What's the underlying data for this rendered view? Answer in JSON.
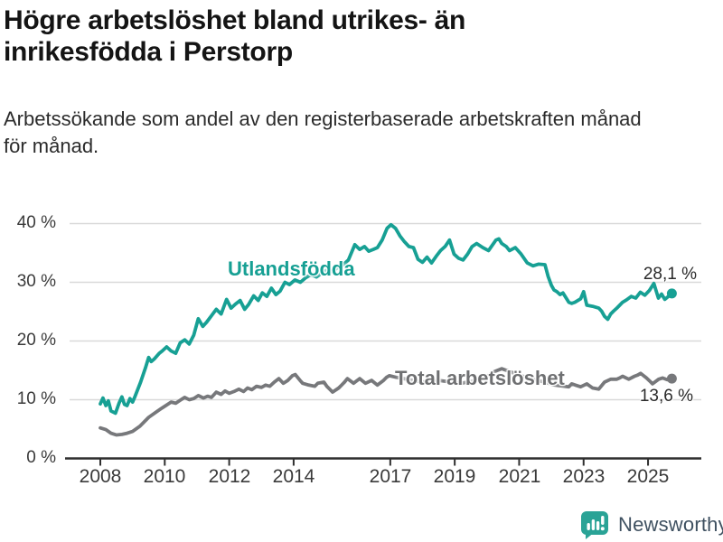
{
  "header": {
    "title_lines": [
      "Högre arbetslöshet bland utrikes- än",
      "inrikesfödda i Perstorp"
    ],
    "subtitle_lines": [
      "Arbetssökande som andel av den registerbaserade arbetskraften månad",
      "för månad."
    ]
  },
  "colors": {
    "accent_teal": "#17a094",
    "series_gray": "#77787b",
    "grid": "#d9d9d9",
    "axis": "#2f2f2f",
    "brand_teal": "#2aa396",
    "brand_text": "#3f5161"
  },
  "footer": {
    "brand": "Newsworthy"
  },
  "chart_data": {
    "type": "line",
    "title": "Högre arbetslöshet bland utrikes- än inrikesfödda i Perstorp",
    "subtitle": "Arbetssökande som andel av den registerbaserade arbetskraften månad för månad.",
    "xlabel": "",
    "ylabel": "",
    "unit": "%",
    "grid": "horizontal",
    "legend_position": "inline-labels",
    "xlim": [
      2007.0,
      2026.3
    ],
    "ylim": [
      0,
      40
    ],
    "xticks": [
      2008,
      2010,
      2012,
      2014,
      2017,
      2019,
      2021,
      2023,
      2025
    ],
    "xtick_labels": [
      "2008",
      "2010",
      "2012",
      "2014",
      "2017",
      "2019",
      "2021",
      "2023",
      "2025"
    ],
    "yticks": [
      0,
      10,
      20,
      30,
      40
    ],
    "ytick_labels": [
      "0 %",
      "10 %",
      "20 %",
      "30 %",
      "40 %"
    ],
    "series": [
      {
        "name": "Utlandsfödda",
        "color": "#17a094",
        "end_label": "28,1 %",
        "last_value": 28.1,
        "points": [
          [
            2008.0,
            9.3
          ],
          [
            2008.08,
            10.3
          ],
          [
            2008.17,
            9.0
          ],
          [
            2008.25,
            9.8
          ],
          [
            2008.33,
            8.1
          ],
          [
            2008.47,
            7.7
          ],
          [
            2008.58,
            9.4
          ],
          [
            2008.67,
            10.5
          ],
          [
            2008.75,
            9.2
          ],
          [
            2008.83,
            9.0
          ],
          [
            2008.92,
            10.2
          ],
          [
            2009.0,
            9.6
          ],
          [
            2009.08,
            10.6
          ],
          [
            2009.25,
            13.0
          ],
          [
            2009.4,
            15.4
          ],
          [
            2009.5,
            17.2
          ],
          [
            2009.58,
            16.5
          ],
          [
            2009.67,
            16.9
          ],
          [
            2009.83,
            17.9
          ],
          [
            2009.92,
            18.3
          ],
          [
            2010.06,
            19.0
          ],
          [
            2010.2,
            18.3
          ],
          [
            2010.34,
            17.9
          ],
          [
            2010.48,
            19.7
          ],
          [
            2010.62,
            20.2
          ],
          [
            2010.76,
            19.5
          ],
          [
            2010.9,
            21.0
          ],
          [
            2011.04,
            23.8
          ],
          [
            2011.18,
            22.5
          ],
          [
            2011.3,
            23.2
          ],
          [
            2011.45,
            24.3
          ],
          [
            2011.6,
            25.4
          ],
          [
            2011.75,
            24.6
          ],
          [
            2011.92,
            27.1
          ],
          [
            2012.06,
            25.6
          ],
          [
            2012.2,
            26.3
          ],
          [
            2012.34,
            26.9
          ],
          [
            2012.48,
            25.4
          ],
          [
            2012.6,
            26.2
          ],
          [
            2012.76,
            27.7
          ],
          [
            2012.9,
            26.9
          ],
          [
            2013.03,
            28.2
          ],
          [
            2013.17,
            27.6
          ],
          [
            2013.31,
            29.0
          ],
          [
            2013.45,
            27.9
          ],
          [
            2013.58,
            28.5
          ],
          [
            2013.73,
            30.0
          ],
          [
            2013.87,
            29.6
          ],
          [
            2014.04,
            30.4
          ],
          [
            2014.21,
            30.0
          ],
          [
            2014.38,
            30.8
          ],
          [
            2014.54,
            31.3
          ],
          [
            2014.71,
            30.9
          ],
          [
            2014.88,
            31.6
          ],
          [
            2015.04,
            32.1
          ],
          [
            2015.21,
            31.8
          ],
          [
            2015.38,
            32.6
          ],
          [
            2015.54,
            33.0
          ],
          [
            2015.7,
            33.8
          ],
          [
            2015.9,
            36.4
          ],
          [
            2016.05,
            35.6
          ],
          [
            2016.2,
            36.1
          ],
          [
            2016.33,
            35.3
          ],
          [
            2016.47,
            35.6
          ],
          [
            2016.6,
            35.9
          ],
          [
            2016.75,
            37.2
          ],
          [
            2016.9,
            39.2
          ],
          [
            2017.02,
            39.8
          ],
          [
            2017.16,
            39.2
          ],
          [
            2017.3,
            37.9
          ],
          [
            2017.44,
            36.9
          ],
          [
            2017.58,
            36.1
          ],
          [
            2017.72,
            35.9
          ],
          [
            2017.86,
            33.9
          ],
          [
            2018.0,
            33.4
          ],
          [
            2018.14,
            34.3
          ],
          [
            2018.28,
            33.3
          ],
          [
            2018.42,
            34.4
          ],
          [
            2018.56,
            35.4
          ],
          [
            2018.7,
            36.1
          ],
          [
            2018.84,
            37.2
          ],
          [
            2018.98,
            34.8
          ],
          [
            2019.12,
            34.1
          ],
          [
            2019.26,
            33.8
          ],
          [
            2019.4,
            34.8
          ],
          [
            2019.54,
            36.1
          ],
          [
            2019.68,
            36.6
          ],
          [
            2019.87,
            35.9
          ],
          [
            2020.05,
            35.4
          ],
          [
            2020.28,
            37.2
          ],
          [
            2020.37,
            37.4
          ],
          [
            2020.46,
            36.6
          ],
          [
            2020.6,
            36.1
          ],
          [
            2020.7,
            35.4
          ],
          [
            2020.88,
            35.9
          ],
          [
            2021.06,
            34.8
          ],
          [
            2021.25,
            33.3
          ],
          [
            2021.43,
            32.8
          ],
          [
            2021.6,
            33.1
          ],
          [
            2021.8,
            33.0
          ],
          [
            2021.9,
            31.0
          ],
          [
            2022.0,
            29.5
          ],
          [
            2022.08,
            28.7
          ],
          [
            2022.17,
            28.4
          ],
          [
            2022.27,
            27.9
          ],
          [
            2022.36,
            28.2
          ],
          [
            2022.45,
            27.4
          ],
          [
            2022.54,
            26.6
          ],
          [
            2022.63,
            26.4
          ],
          [
            2022.73,
            26.6
          ],
          [
            2022.91,
            27.2
          ],
          [
            2023.0,
            28.4
          ],
          [
            2023.1,
            26.1
          ],
          [
            2023.28,
            25.9
          ],
          [
            2023.47,
            25.6
          ],
          [
            2023.56,
            25.1
          ],
          [
            2023.65,
            24.2
          ],
          [
            2023.75,
            23.7
          ],
          [
            2023.84,
            24.6
          ],
          [
            2023.93,
            25.1
          ],
          [
            2024.03,
            25.6
          ],
          [
            2024.12,
            26.1
          ],
          [
            2024.21,
            26.6
          ],
          [
            2024.33,
            27.0
          ],
          [
            2024.48,
            27.6
          ],
          [
            2024.62,
            27.3
          ],
          [
            2024.76,
            28.3
          ],
          [
            2024.9,
            27.8
          ],
          [
            2025.04,
            28.6
          ],
          [
            2025.18,
            29.8
          ],
          [
            2025.32,
            27.3
          ],
          [
            2025.42,
            28.0
          ],
          [
            2025.52,
            27.1
          ],
          [
            2025.74,
            28.1
          ]
        ]
      },
      {
        "name": "Total arbetslöshet",
        "color": "#77787b",
        "end_label": "13,6 %",
        "last_value": 13.6,
        "points": [
          [
            2008.0,
            5.2
          ],
          [
            2008.17,
            4.9
          ],
          [
            2008.33,
            4.3
          ],
          [
            2008.5,
            4.0
          ],
          [
            2008.67,
            4.1
          ],
          [
            2008.83,
            4.3
          ],
          [
            2009.0,
            4.6
          ],
          [
            2009.23,
            5.5
          ],
          [
            2009.5,
            7.0
          ],
          [
            2009.78,
            8.1
          ],
          [
            2009.92,
            8.6
          ],
          [
            2010.06,
            9.1
          ],
          [
            2010.2,
            9.6
          ],
          [
            2010.34,
            9.4
          ],
          [
            2010.48,
            9.9
          ],
          [
            2010.62,
            10.4
          ],
          [
            2010.76,
            10.0
          ],
          [
            2010.9,
            10.2
          ],
          [
            2011.04,
            10.7
          ],
          [
            2011.2,
            10.3
          ],
          [
            2011.33,
            10.6
          ],
          [
            2011.45,
            10.4
          ],
          [
            2011.6,
            11.3
          ],
          [
            2011.75,
            10.9
          ],
          [
            2011.87,
            11.5
          ],
          [
            2012.0,
            11.1
          ],
          [
            2012.15,
            11.4
          ],
          [
            2012.3,
            11.8
          ],
          [
            2012.45,
            11.4
          ],
          [
            2012.57,
            12.0
          ],
          [
            2012.7,
            11.7
          ],
          [
            2012.85,
            12.3
          ],
          [
            2013.0,
            12.1
          ],
          [
            2013.13,
            12.5
          ],
          [
            2013.26,
            12.3
          ],
          [
            2013.4,
            13.0
          ],
          [
            2013.54,
            13.6
          ],
          [
            2013.68,
            12.8
          ],
          [
            2013.82,
            13.3
          ],
          [
            2013.96,
            14.1
          ],
          [
            2014.05,
            14.3
          ],
          [
            2014.2,
            13.3
          ],
          [
            2014.28,
            12.8
          ],
          [
            2014.47,
            12.5
          ],
          [
            2014.66,
            12.3
          ],
          [
            2014.75,
            12.8
          ],
          [
            2014.94,
            13.0
          ],
          [
            2015.03,
            12.3
          ],
          [
            2015.12,
            11.8
          ],
          [
            2015.21,
            11.3
          ],
          [
            2015.4,
            12.0
          ],
          [
            2015.49,
            12.5
          ],
          [
            2015.58,
            13.0
          ],
          [
            2015.67,
            13.6
          ],
          [
            2015.86,
            12.8
          ],
          [
            2016.05,
            13.6
          ],
          [
            2016.23,
            12.8
          ],
          [
            2016.42,
            13.3
          ],
          [
            2016.6,
            12.5
          ],
          [
            2016.79,
            13.3
          ],
          [
            2016.88,
            13.8
          ],
          [
            2016.97,
            14.1
          ],
          [
            2017.2,
            13.8
          ],
          [
            2017.5,
            13.5
          ],
          [
            2017.8,
            13.2
          ],
          [
            2018.1,
            13.0
          ],
          [
            2018.5,
            13.3
          ],
          [
            2018.9,
            13.0
          ],
          [
            2019.2,
            12.8
          ],
          [
            2019.6,
            13.2
          ],
          [
            2019.9,
            13.6
          ],
          [
            2020.2,
            14.7
          ],
          [
            2020.46,
            15.3
          ],
          [
            2020.7,
            14.8
          ],
          [
            2021.0,
            14.2
          ],
          [
            2021.4,
            13.5
          ],
          [
            2021.8,
            13.0
          ],
          [
            2022.1,
            12.5
          ],
          [
            2022.54,
            12.2
          ],
          [
            2022.63,
            12.7
          ],
          [
            2022.8,
            12.4
          ],
          [
            2022.91,
            12.2
          ],
          [
            2023.1,
            12.7
          ],
          [
            2023.28,
            12.0
          ],
          [
            2023.47,
            11.8
          ],
          [
            2023.65,
            13.0
          ],
          [
            2023.84,
            13.5
          ],
          [
            2024.03,
            13.5
          ],
          [
            2024.12,
            13.7
          ],
          [
            2024.21,
            14.0
          ],
          [
            2024.4,
            13.5
          ],
          [
            2024.58,
            14.0
          ],
          [
            2024.68,
            14.2
          ],
          [
            2024.77,
            14.5
          ],
          [
            2024.95,
            13.7
          ],
          [
            2025.05,
            13.2
          ],
          [
            2025.14,
            12.7
          ],
          [
            2025.33,
            13.5
          ],
          [
            2025.45,
            13.7
          ],
          [
            2025.6,
            13.4
          ],
          [
            2025.74,
            13.6
          ]
        ]
      }
    ]
  }
}
